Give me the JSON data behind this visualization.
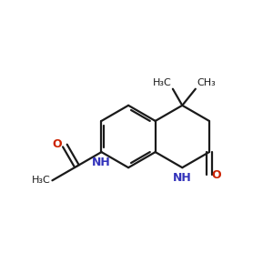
{
  "bg_color": "#ffffff",
  "bond_color": "#1a1a1a",
  "N_color": "#3333bb",
  "O_color": "#cc2200",
  "lw": 1.6,
  "fs": 9.0,
  "fs_sub": 7.0,
  "figsize": [
    3.0,
    3.0
  ],
  "dpi": 100,
  "xlim": [
    0,
    10
  ],
  "ylim": [
    0,
    10
  ],
  "s": 1.15,
  "bx": 4.7,
  "by": 5.0
}
